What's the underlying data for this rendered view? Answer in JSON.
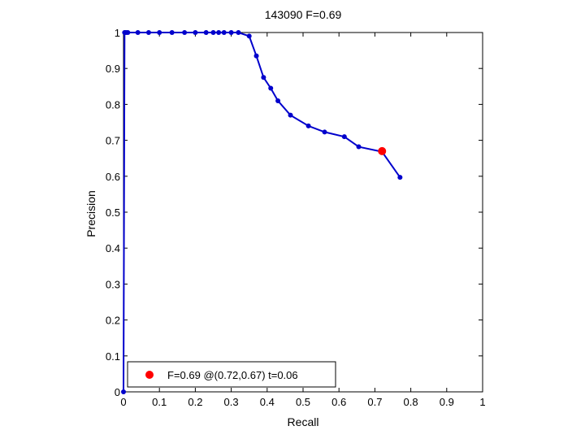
{
  "chart_data": {
    "type": "line",
    "title": "143090 F=0.69",
    "xlabel": "Recall",
    "ylabel": "Precision",
    "xlim": [
      0,
      1
    ],
    "ylim": [
      0,
      1
    ],
    "xticks": [
      "0",
      "0.1",
      "0.2",
      "0.3",
      "0.4",
      "0.5",
      "0.6",
      "0.7",
      "0.8",
      "0.9",
      "1"
    ],
    "yticks": [
      "0",
      "0.1",
      "0.2",
      "0.3",
      "0.4",
      "0.5",
      "0.6",
      "0.7",
      "0.8",
      "0.9",
      "1"
    ],
    "grid": true,
    "series": [
      {
        "color": "#0000cc",
        "x": [
          0,
          0.003,
          0.007,
          0.012,
          0.04,
          0.07,
          0.1,
          0.135,
          0.17,
          0.2,
          0.23,
          0.25,
          0.265,
          0.28,
          0.3,
          0.32,
          0.35,
          0.37,
          0.39,
          0.41,
          0.43,
          0.465,
          0.515,
          0.56,
          0.615,
          0.655,
          0.72,
          0.77
        ],
        "y": [
          0,
          1,
          1,
          1,
          1,
          1,
          1,
          1,
          1,
          1,
          1,
          1,
          1,
          1,
          1,
          1,
          0.99,
          0.935,
          0.875,
          0.845,
          0.81,
          0.77,
          0.74,
          0.723,
          0.71,
          0.682,
          0.668,
          0.597
        ]
      }
    ],
    "highlight_point": {
      "x": 0.72,
      "y": 0.67,
      "color": "#ff0000"
    },
    "legend": {
      "placement": "bottom-left",
      "label": "F=0.69 @(0.72,0.67) t=0.06"
    }
  }
}
